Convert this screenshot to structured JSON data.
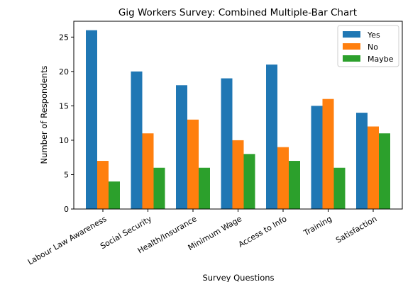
{
  "chart_data": {
    "type": "bar",
    "title": "Gig Workers Survey: Combined Multiple-Bar Chart",
    "xlabel": "Survey Questions",
    "ylabel": "Number of Respondents",
    "categories": [
      "Labour Law Awareness",
      "Social Security",
      "Health/Insurance",
      "Minimum Wage",
      "Access to Info",
      "Training",
      "Satisfaction"
    ],
    "series": [
      {
        "name": "Yes",
        "values": [
          26,
          20,
          18,
          19,
          21,
          15,
          14
        ],
        "color": "#1f77b4"
      },
      {
        "name": "No",
        "values": [
          7,
          11,
          13,
          10,
          9,
          16,
          12
        ],
        "color": "#ff7f0e"
      },
      {
        "name": "Maybe",
        "values": [
          4,
          6,
          6,
          8,
          7,
          6,
          11
        ],
        "color": "#2ca02c"
      }
    ],
    "ylim": [
      0,
      27.3
    ],
    "yticks": [
      0,
      5,
      10,
      15,
      20,
      25
    ],
    "grid": false,
    "legend": "top-right"
  }
}
